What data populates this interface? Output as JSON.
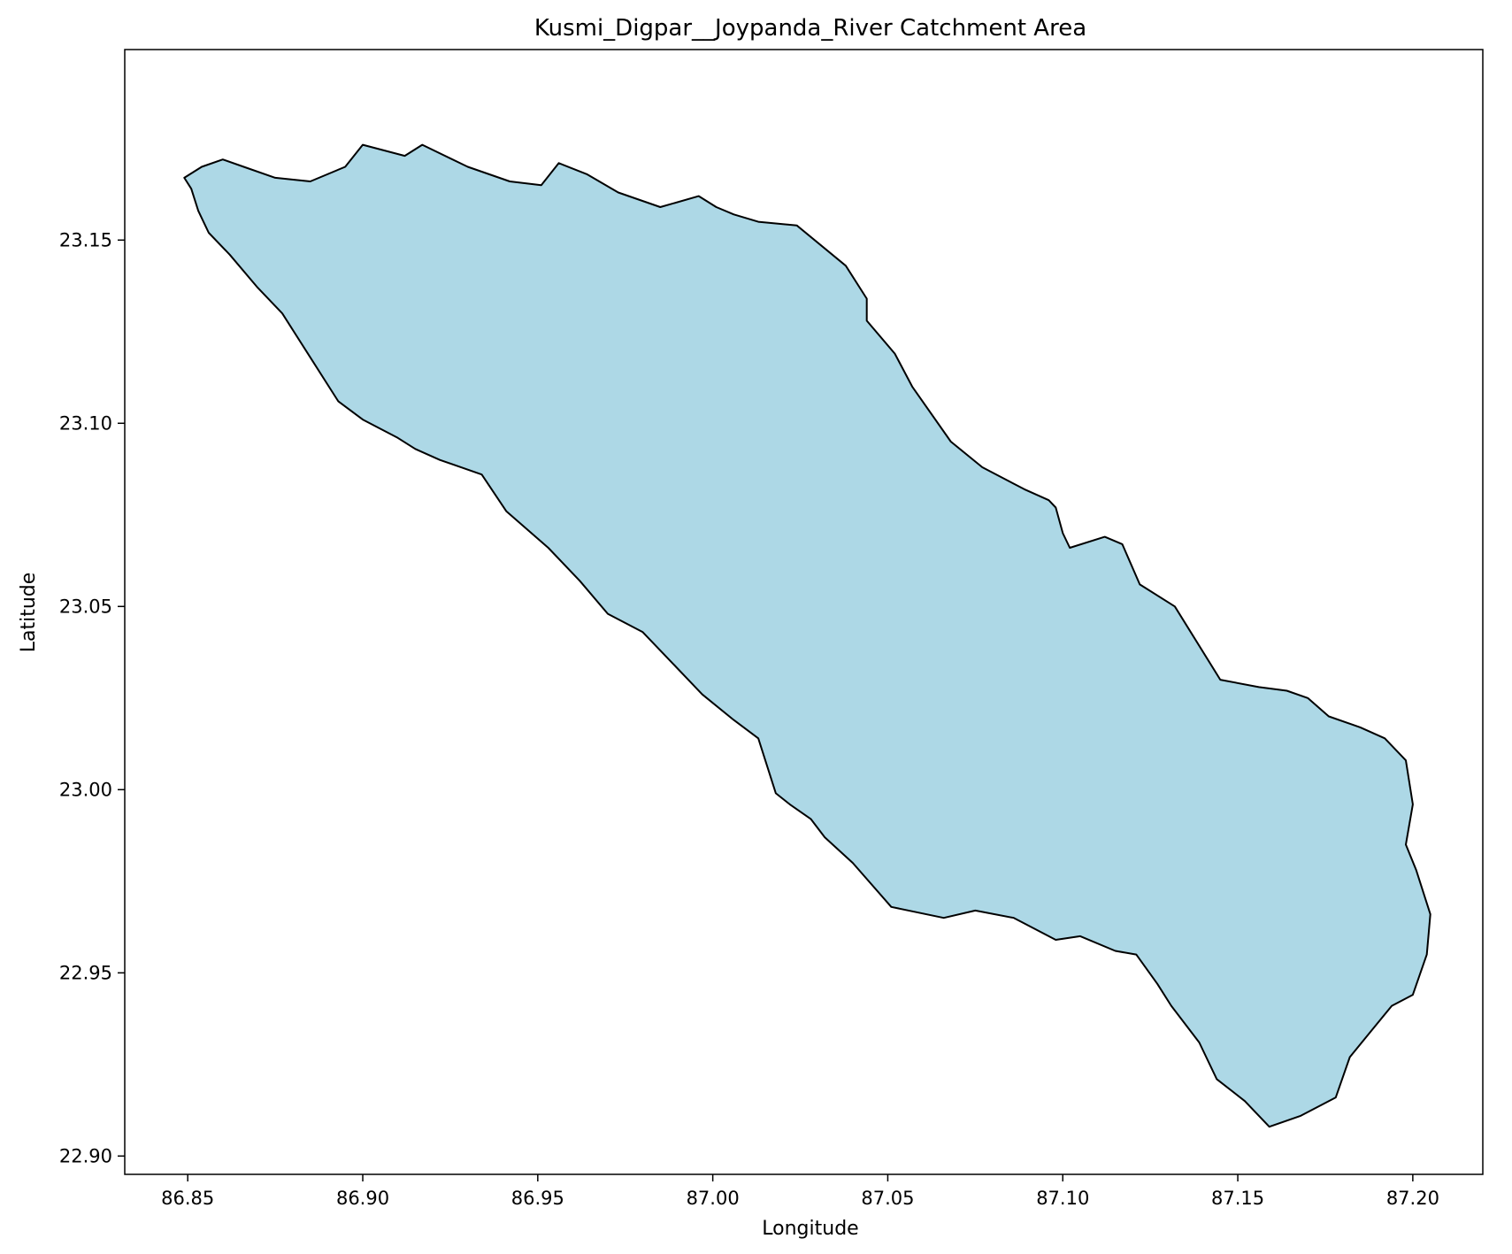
{
  "chart_data": {
    "type": "area",
    "title": "Kusmi_Digpar__Joypanda_River Catchment Area",
    "xlabel": "Longitude",
    "ylabel": "Latitude",
    "xlim": [
      86.832,
      87.22
    ],
    "ylim": [
      22.895,
      23.202
    ],
    "xticks": [
      86.85,
      86.9,
      86.95,
      87.0,
      87.05,
      87.1,
      87.15,
      87.2
    ],
    "xtick_labels": [
      "86.85",
      "86.90",
      "86.95",
      "87.00",
      "87.05",
      "87.10",
      "87.15",
      "87.20"
    ],
    "yticks": [
      22.9,
      22.95,
      23.0,
      23.05,
      23.1,
      23.15
    ],
    "ytick_labels": [
      "22.90",
      "22.95",
      "23.00",
      "23.05",
      "23.10",
      "23.15"
    ],
    "grid": false,
    "legend": null,
    "fill_color": "#add8e6",
    "edge_color": "#000000",
    "polygon": {
      "lon": [
        86.849,
        86.854,
        86.86,
        86.866,
        86.875,
        86.885,
        86.895,
        86.9,
        86.912,
        86.917,
        86.93,
        86.942,
        86.951,
        86.956,
        86.964,
        86.973,
        86.985,
        86.996,
        87.001,
        87.006,
        87.013,
        87.024,
        87.038,
        87.044,
        87.044,
        87.052,
        87.057,
        87.068,
        87.077,
        87.089,
        87.096,
        87.098,
        87.1,
        87.102,
        87.112,
        87.117,
        87.122,
        87.132,
        87.145,
        87.156,
        87.164,
        87.17,
        87.176,
        87.185,
        87.192,
        87.198,
        87.2,
        87.198,
        87.201,
        87.205,
        87.204,
        87.2,
        87.194,
        87.188,
        87.182,
        87.178,
        87.168,
        87.159,
        87.152,
        87.144,
        87.139,
        87.131,
        87.127,
        87.121,
        87.115,
        87.105,
        87.098,
        87.092,
        87.086,
        87.075,
        87.066,
        87.051,
        87.04,
        87.032,
        87.028,
        87.022,
        87.018,
        87.013,
        87.006,
        86.997,
        86.988,
        86.98,
        86.97,
        86.962,
        86.953,
        86.941,
        86.934,
        86.922,
        86.915,
        86.91,
        86.9,
        86.893,
        86.885,
        86.877,
        86.87,
        86.862,
        86.856,
        86.853,
        86.851
      ],
      "lat": [
        23.167,
        23.17,
        23.172,
        23.17,
        23.167,
        23.166,
        23.17,
        23.176,
        23.173,
        23.176,
        23.17,
        23.166,
        23.165,
        23.171,
        23.168,
        23.163,
        23.159,
        23.162,
        23.159,
        23.157,
        23.155,
        23.154,
        23.143,
        23.134,
        23.128,
        23.119,
        23.11,
        23.095,
        23.088,
        23.082,
        23.079,
        23.077,
        23.07,
        23.066,
        23.069,
        23.067,
        23.056,
        23.05,
        23.03,
        23.028,
        23.027,
        23.025,
        23.02,
        23.017,
        23.014,
        23.008,
        22.996,
        22.985,
        22.978,
        22.966,
        22.955,
        22.944,
        22.941,
        22.934,
        22.927,
        22.916,
        22.911,
        22.908,
        22.915,
        22.921,
        22.931,
        22.941,
        22.947,
        22.955,
        22.956,
        22.96,
        22.959,
        22.962,
        22.965,
        22.967,
        22.965,
        22.968,
        22.98,
        22.987,
        22.992,
        22.996,
        22.999,
        23.014,
        23.019,
        23.026,
        23.035,
        23.043,
        23.048,
        23.057,
        23.066,
        23.076,
        23.086,
        23.09,
        23.093,
        23.096,
        23.101,
        23.106,
        23.118,
        23.13,
        23.137,
        23.146,
        23.152,
        23.158,
        23.164
      ]
    }
  }
}
